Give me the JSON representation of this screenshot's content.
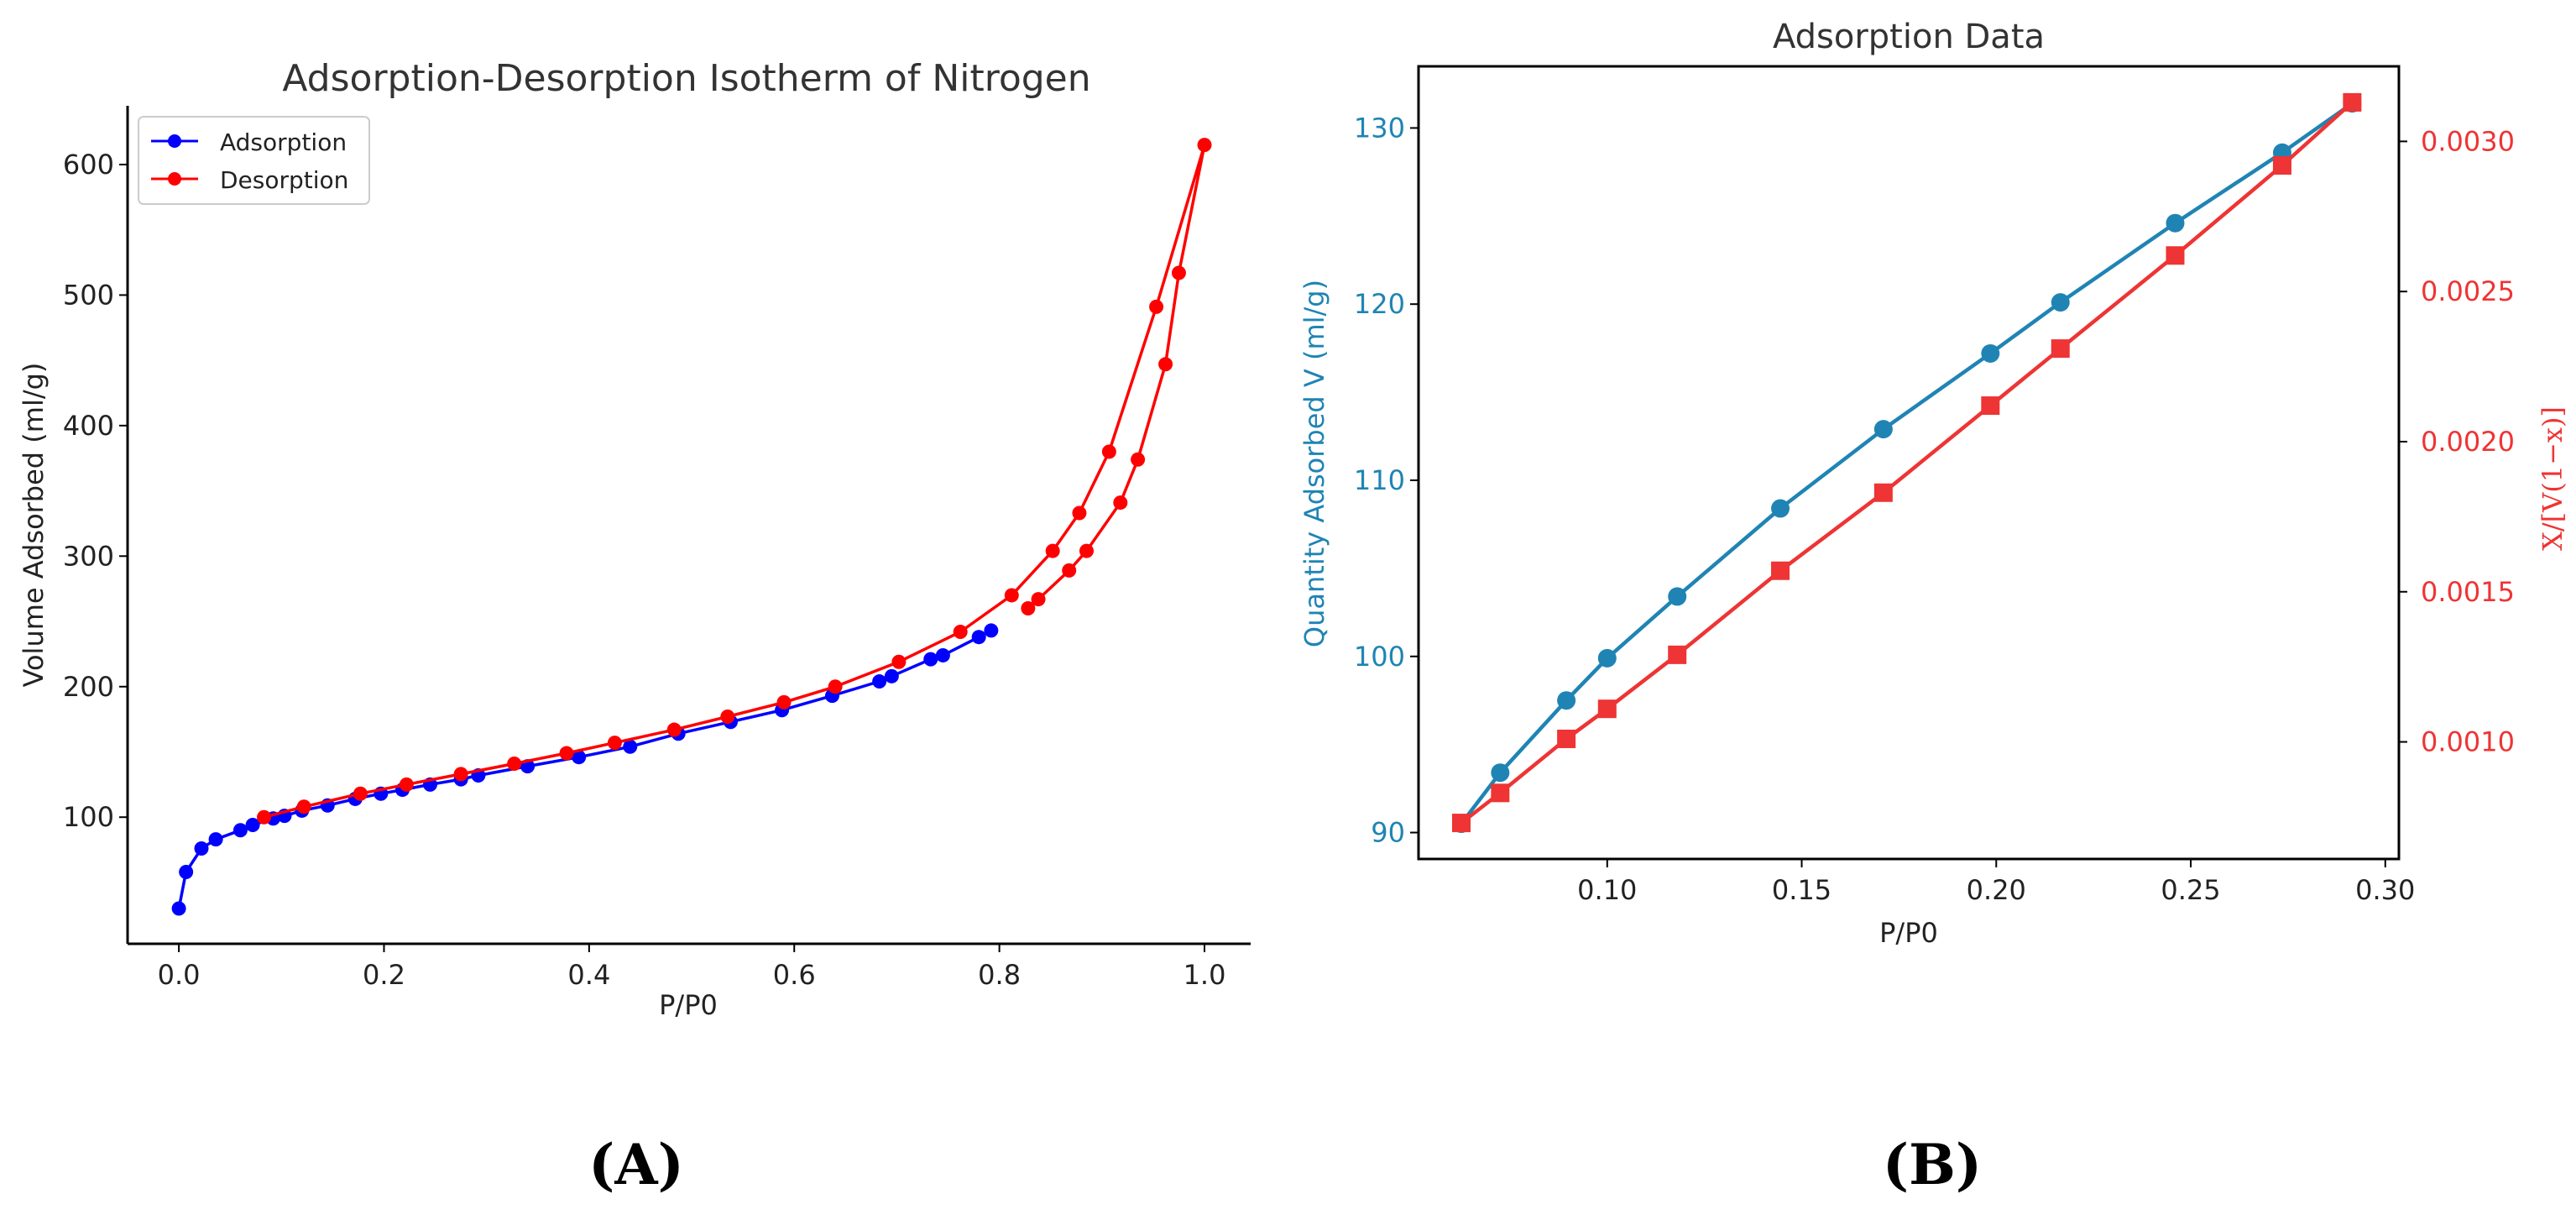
{
  "chart_data": [
    {
      "type": "line",
      "panel_label": "(A)",
      "title": "Adsorption-Desorption Isotherm of Nitrogen",
      "xlabel": "P/P0",
      "ylabel": "Volume Adsorbed (ml/g)",
      "xlim": [
        -0.05,
        1.045
      ],
      "ylim": [
        3,
        645
      ],
      "xticks": [
        0.0,
        0.2,
        0.4,
        0.6,
        0.8,
        1.0
      ],
      "xtick_labels": [
        "0.0",
        "0.2",
        "0.4",
        "0.6",
        "0.8",
        "1.0"
      ],
      "yticks": [
        100,
        200,
        300,
        400,
        500,
        600
      ],
      "ytick_labels": [
        "100",
        "200",
        "300",
        "400",
        "500",
        "600"
      ],
      "legend": "upper-left",
      "series": [
        {
          "name": "Adsorption",
          "color": "#0000ff",
          "marker": "circle",
          "x": [
            0.0,
            0.007,
            0.022,
            0.036,
            0.06,
            0.072,
            0.092,
            0.103,
            0.12,
            0.145,
            0.172,
            0.197,
            0.218,
            0.245,
            0.275,
            0.292,
            0.34,
            0.39,
            0.44,
            0.487,
            0.538,
            0.588,
            0.637,
            0.683,
            0.695,
            0.733,
            0.745,
            0.78,
            0.792
          ],
          "y": [
            30,
            58,
            76,
            83,
            90,
            94,
            99,
            101,
            105,
            109,
            114,
            118,
            121,
            125,
            129,
            132,
            139,
            146,
            154,
            164,
            173,
            182,
            193,
            204,
            208,
            221,
            224,
            238,
            243
          ]
        },
        {
          "name": "Desorption",
          "color": "#ff0000",
          "marker": "circle",
          "x": [
            0.083,
            0.122,
            0.177,
            0.222,
            0.275,
            0.327,
            0.378,
            0.425,
            0.483,
            0.535,
            0.59,
            0.64,
            0.702,
            0.762,
            0.812,
            0.852,
            0.878,
            0.907,
            0.953,
            1.0,
            0.975,
            0.962,
            0.935,
            0.918,
            0.885,
            0.868,
            0.838,
            0.828
          ],
          "y": [
            100,
            108,
            118,
            125,
            133,
            141,
            149,
            157,
            167,
            177,
            188,
            200,
            219,
            242,
            270,
            304,
            333,
            380,
            491,
            615,
            517,
            447,
            374,
            341,
            304,
            289,
            267,
            260
          ]
        }
      ]
    },
    {
      "type": "line",
      "panel_label": "(B)",
      "title": "Adsorption Data",
      "xlabel": "P/P0",
      "ylabel": "Quantity Adsorbed V (ml/g)",
      "ylabel_right": "X/[V(1−x)]",
      "xlim": [
        0.0515,
        0.3035
      ],
      "ylim": [
        88.5,
        133.5
      ],
      "ylim_right": [
        0.00061,
        0.00325
      ],
      "xticks": [
        0.1,
        0.15,
        0.2,
        0.25,
        0.3
      ],
      "xtick_labels": [
        "0.10",
        "0.15",
        "0.20",
        "0.25",
        "0.30"
      ],
      "yticks": [
        90,
        100,
        110,
        120,
        130
      ],
      "ytick_labels": [
        "90",
        "100",
        "110",
        "120",
        "130"
      ],
      "yticks_right": [
        0.001,
        0.0015,
        0.002,
        0.0025,
        0.003
      ],
      "ytick_labels_right": [
        "0.0010",
        "0.0015",
        "0.0020",
        "0.0025",
        "0.0030"
      ],
      "series": [
        {
          "name": "Quantity Adsorbed V (ml/g)",
          "axis": "left",
          "color": "#1f84b4",
          "marker": "circle",
          "x": [
            0.0625,
            0.0725,
            0.0895,
            0.1,
            0.118,
            0.1445,
            0.171,
            0.1985,
            0.2165,
            0.246,
            0.2735,
            0.2915
          ],
          "y": [
            90.5,
            93.4,
            97.5,
            99.9,
            103.4,
            108.4,
            112.9,
            117.2,
            120.1,
            124.6,
            128.6,
            131.4
          ]
        },
        {
          "name": "X/[V(1−x)]",
          "axis": "right",
          "color": "#ee3434",
          "marker": "square",
          "x": [
            0.0625,
            0.0725,
            0.0895,
            0.1,
            0.118,
            0.1445,
            0.171,
            0.1985,
            0.2165,
            0.246,
            0.2735,
            0.2915
          ],
          "y": [
            0.00073,
            0.00083,
            0.00101,
            0.00111,
            0.00129,
            0.00157,
            0.00183,
            0.00212,
            0.00231,
            0.00262,
            0.00292,
            0.00313
          ]
        }
      ]
    }
  ]
}
